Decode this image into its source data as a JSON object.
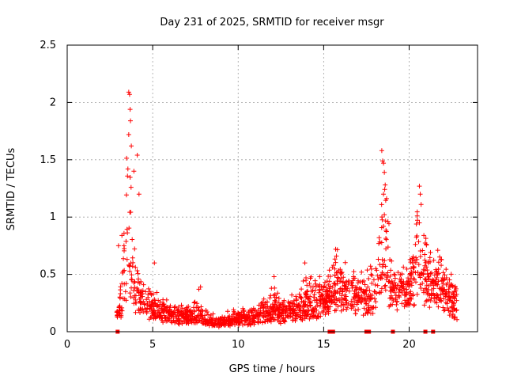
{
  "chart_data": {
    "type": "scatter",
    "title": "Day 231 of 2025, SRMTID for receiver msgr",
    "xlabel": "GPS time / hours",
    "ylabel": "SRMTID / TECUs",
    "xlim": [
      0,
      24
    ],
    "ylim": [
      0,
      2.5
    ],
    "xticks": [
      0,
      5,
      10,
      15,
      20
    ],
    "yticks": [
      0,
      0.5,
      1,
      1.5,
      2,
      2.5
    ],
    "xtick_labels": [
      "0",
      "5",
      "10",
      "15",
      "20"
    ],
    "ytick_labels": [
      "0",
      "0.5",
      "1",
      "1.5",
      "2",
      "2.5"
    ],
    "grid": true,
    "marker": "+",
    "series": [
      {
        "name": "SRMTID",
        "color": "#ff0000",
        "envelope": {
          "x": [
            2.9,
            3.0,
            3.2,
            3.4,
            3.5,
            3.6,
            3.7,
            3.8,
            3.9,
            4.0,
            4.2,
            4.5,
            5.0,
            5.5,
            6.0,
            6.5,
            7.0,
            7.5,
            7.8,
            8.0,
            8.5,
            9.0,
            9.5,
            10.0,
            10.5,
            11.0,
            11.5,
            12.0,
            12.5,
            13.0,
            13.5,
            14.0,
            14.5,
            15.0,
            15.5,
            15.8,
            16.0,
            16.5,
            17.0,
            17.5,
            18.0,
            18.3,
            18.5,
            18.7,
            19.0,
            19.5,
            20.0,
            20.3,
            20.5,
            20.7,
            21.0,
            21.5,
            22.0,
            22.5,
            22.8
          ],
          "base": [
            0.15,
            0.2,
            0.3,
            0.45,
            0.6,
            0.7,
            0.6,
            0.5,
            0.45,
            0.4,
            0.35,
            0.3,
            0.25,
            0.2,
            0.18,
            0.16,
            0.15,
            0.14,
            0.13,
            0.12,
            0.1,
            0.1,
            0.12,
            0.14,
            0.13,
            0.15,
            0.17,
            0.2,
            0.18,
            0.2,
            0.22,
            0.25,
            0.28,
            0.3,
            0.35,
            0.45,
            0.4,
            0.38,
            0.35,
            0.33,
            0.35,
            0.45,
            0.6,
            0.55,
            0.42,
            0.4,
            0.45,
            0.5,
            0.6,
            0.55,
            0.5,
            0.45,
            0.4,
            0.3,
            0.25
          ],
          "spread": [
            0.1,
            0.15,
            0.35,
            0.8,
            1.2,
            1.35,
            1.0,
            0.9,
            0.6,
            0.3,
            0.25,
            0.2,
            0.15,
            0.12,
            0.1,
            0.1,
            0.1,
            0.15,
            0.12,
            0.08,
            0.06,
            0.06,
            0.07,
            0.08,
            0.07,
            0.1,
            0.15,
            0.25,
            0.15,
            0.15,
            0.2,
            0.25,
            0.2,
            0.2,
            0.3,
            0.35,
            0.3,
            0.25,
            0.2,
            0.25,
            0.3,
            0.6,
            1.0,
            0.8,
            0.3,
            0.25,
            0.25,
            0.4,
            0.7,
            0.5,
            0.4,
            0.35,
            0.3,
            0.2,
            0.15
          ]
        },
        "peaks": [
          {
            "x": 3.6,
            "y": 2.09
          },
          {
            "x": 3.65,
            "y": 2.07
          },
          {
            "x": 3.68,
            "y": 1.94
          },
          {
            "x": 3.7,
            "y": 1.84
          },
          {
            "x": 3.6,
            "y": 1.72
          },
          {
            "x": 3.75,
            "y": 1.62
          },
          {
            "x": 4.1,
            "y": 1.54
          },
          {
            "x": 3.55,
            "y": 1.42
          },
          {
            "x": 3.9,
            "y": 1.4
          },
          {
            "x": 4.2,
            "y": 1.2
          },
          {
            "x": 3.2,
            "y": 0.84
          },
          {
            "x": 3.0,
            "y": 0.75
          },
          {
            "x": 18.4,
            "y": 1.58
          },
          {
            "x": 18.45,
            "y": 1.49
          },
          {
            "x": 18.5,
            "y": 1.47
          },
          {
            "x": 18.55,
            "y": 1.39
          },
          {
            "x": 18.6,
            "y": 1.28
          },
          {
            "x": 18.5,
            "y": 1.2
          },
          {
            "x": 18.55,
            "y": 1.02
          },
          {
            "x": 20.6,
            "y": 1.27
          },
          {
            "x": 20.65,
            "y": 1.2
          },
          {
            "x": 20.7,
            "y": 1.11
          },
          {
            "x": 20.6,
            "y": 0.95
          },
          {
            "x": 15.7,
            "y": 0.72
          },
          {
            "x": 13.9,
            "y": 0.6
          },
          {
            "x": 7.8,
            "y": 0.39
          },
          {
            "x": 7.7,
            "y": 0.37
          },
          {
            "x": 5.1,
            "y": 0.6
          },
          {
            "x": 12.1,
            "y": 0.48
          }
        ],
        "zero_markers_x": [
          2.95,
          15.35,
          15.55,
          17.5,
          17.65,
          19.05,
          20.95,
          21.4
        ]
      }
    ]
  }
}
